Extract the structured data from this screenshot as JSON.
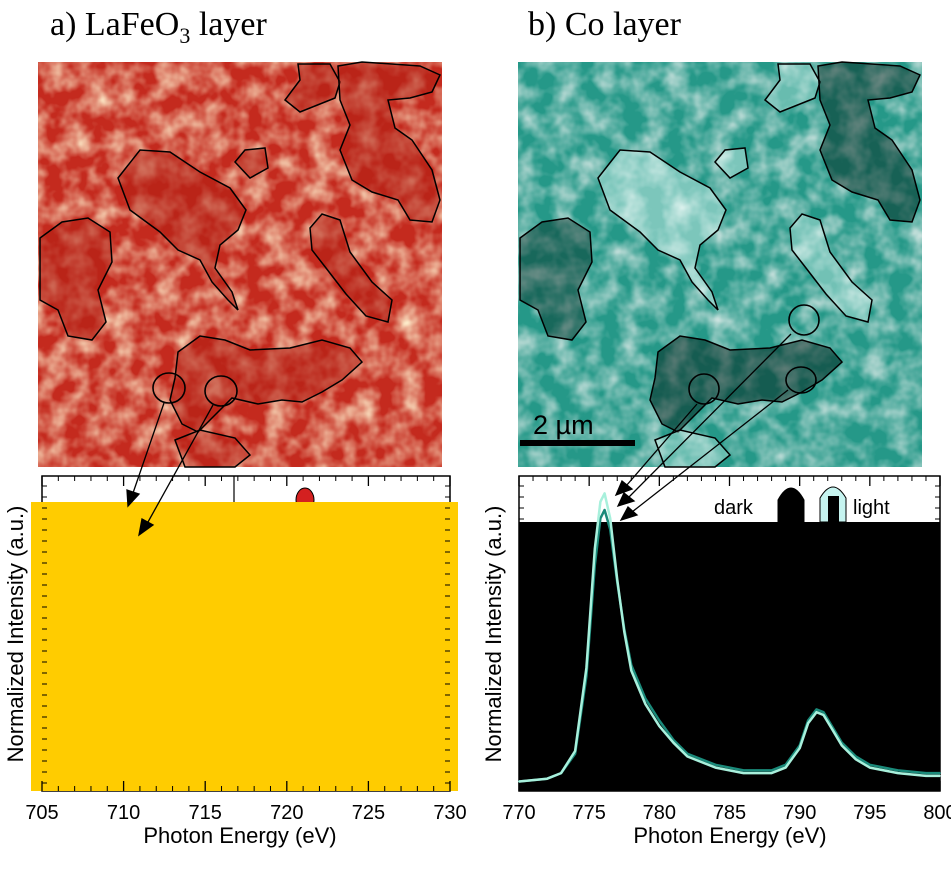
{
  "panels": {
    "a": {
      "title_prefix": "a) LaFeO",
      "title_sub": "3",
      "title_suffix": " layer"
    },
    "b": {
      "title": "b) Co layer"
    }
  },
  "scale_bar": {
    "label": "2 µm"
  },
  "colors": {
    "lafeo3_map": "#c0281c",
    "co_map": "#3cc6b4",
    "spectrum_fill_a": "#ffcc00",
    "spectrum_fill_b": "#000000",
    "dark_curve": "#1a8a7a",
    "light_curve": "#a8f0dc"
  },
  "chart_data": [
    {
      "type": "line",
      "title": "",
      "xlabel": "Photon Energy (eV)",
      "ylabel": "Normalized Intensity (a.u.)",
      "xlim": [
        705,
        730
      ],
      "xticks": [
        705,
        710,
        715,
        720,
        725,
        730
      ],
      "xtick_labels": [
        "705",
        "710",
        "715",
        "720",
        "725",
        "730"
      ],
      "note": "plot area covered by a solid filled region"
    },
    {
      "type": "line",
      "title": "",
      "xlabel": "Photon Energy (eV)",
      "ylabel": "Normalized Intensity (a.u.)",
      "xlim": [
        770,
        800
      ],
      "xticks": [
        770,
        775,
        780,
        785,
        790,
        795,
        800
      ],
      "xtick_labels": [
        "770",
        "775",
        "780",
        "785",
        "790",
        "795",
        "800"
      ],
      "legend": {
        "position": "top-right",
        "entries": [
          "dark",
          "light"
        ]
      },
      "series": [
        {
          "name": "dark",
          "x": [
            770,
            772,
            773,
            774,
            774.8,
            775.4,
            775.8,
            776.1,
            776.5,
            777,
            777.5,
            778,
            779,
            780,
            781,
            782,
            784,
            786,
            788,
            789,
            790,
            790.6,
            791.2,
            791.7,
            792.3,
            793,
            794,
            795,
            797,
            799,
            800
          ],
          "y": [
            0.02,
            0.03,
            0.05,
            0.12,
            0.4,
            0.8,
            0.97,
            1.0,
            0.93,
            0.74,
            0.57,
            0.44,
            0.32,
            0.24,
            0.17,
            0.12,
            0.08,
            0.06,
            0.06,
            0.08,
            0.15,
            0.24,
            0.28,
            0.27,
            0.22,
            0.16,
            0.11,
            0.08,
            0.06,
            0.05,
            0.05
          ]
        },
        {
          "name": "light",
          "x": [
            770,
            772,
            773,
            774,
            774.8,
            775.4,
            775.8,
            776.1,
            776.5,
            777,
            777.5,
            778,
            779,
            780,
            781,
            782,
            784,
            786,
            788,
            789,
            790,
            790.6,
            791.2,
            791.7,
            792.3,
            793,
            794,
            795,
            797,
            799,
            800
          ],
          "y": [
            0.02,
            0.03,
            0.05,
            0.13,
            0.43,
            0.86,
            1.03,
            1.06,
            0.97,
            0.75,
            0.56,
            0.42,
            0.3,
            0.22,
            0.16,
            0.11,
            0.07,
            0.05,
            0.05,
            0.07,
            0.14,
            0.23,
            0.27,
            0.26,
            0.21,
            0.15,
            0.1,
            0.07,
            0.05,
            0.04,
            0.04
          ]
        }
      ]
    }
  ]
}
